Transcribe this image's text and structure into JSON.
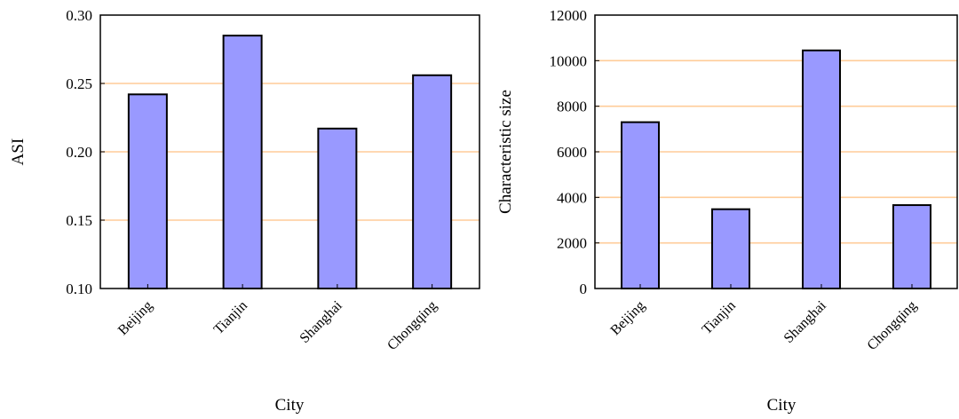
{
  "chart_data": [
    {
      "type": "bar",
      "categories": [
        "Beijing",
        "Tianjin",
        "Shanghai",
        "Chongqing"
      ],
      "values": [
        0.242,
        0.285,
        0.217,
        0.256
      ],
      "xlabel": "City",
      "ylabel": "ASI",
      "ylim": [
        0.1,
        0.3
      ],
      "yticks": [
        "0.10",
        "0.15",
        "0.20",
        "0.25",
        "0.30"
      ],
      "grid": true,
      "colors": {
        "bar": "#9999ff",
        "grid": "#ffcc99",
        "stroke": "#000000"
      }
    },
    {
      "type": "bar",
      "categories": [
        "Beijing",
        "Tianjin",
        "Shanghai",
        "Chongqing"
      ],
      "values": [
        7300,
        3480,
        10450,
        3660
      ],
      "xlabel": "City",
      "ylabel": "Characteristic size",
      "ylim": [
        0,
        12000
      ],
      "yticks": [
        "0",
        "2000",
        "4000",
        "6000",
        "8000",
        "10000",
        "12000"
      ],
      "grid": true,
      "colors": {
        "bar": "#9999ff",
        "grid": "#ffcc99",
        "stroke": "#000000"
      }
    }
  ]
}
